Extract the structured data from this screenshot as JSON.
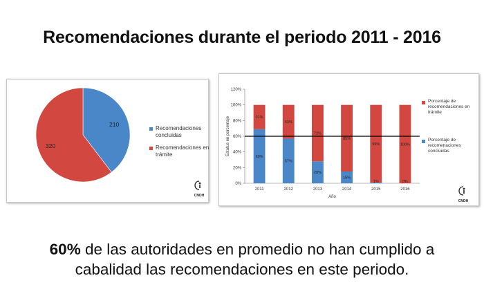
{
  "title": "Recomendaciones durante el periodo 2011 - 2016",
  "chart_data": [
    {
      "type": "pie",
      "labels": [
        "Recomendaciones concluidas",
        "Recomendaciones en trámite"
      ],
      "values": [
        210,
        320
      ],
      "colors": [
        "#4a87c9",
        "#d24840"
      ],
      "legend": [
        "Recomendaciones concluidas",
        "Recomendaciones en trámite"
      ]
    },
    {
      "type": "bar",
      "stacked": true,
      "categories": [
        "2011",
        "2012",
        "2013",
        "2014",
        "2015",
        "2016"
      ],
      "series": [
        {
          "name": "Porcentaje de recomenaciones concluidas",
          "values": [
            69,
            57,
            28,
            15,
            1,
            0
          ],
          "labels": [
            "69%",
            "57%",
            "28%",
            "15%",
            "1%",
            "0%"
          ],
          "color": "#4a87c9"
        },
        {
          "name": "Porcentaje de recomendaciones en trámite",
          "values": [
            31,
            43,
            72,
            85,
            99,
            100
          ],
          "labels": [
            "31%",
            "43%",
            "72%",
            "85%",
            "99%",
            "100%"
          ],
          "color": "#d24840"
        }
      ],
      "ylim": [
        0,
        120
      ],
      "yticks": [
        "0%",
        "20%",
        "40%",
        "60%",
        "80%",
        "100%",
        "120%"
      ],
      "reference_line": 60,
      "xlabel": "Año",
      "ylabel": "Estatus en porcentaje"
    }
  ],
  "logo": {
    "text": "CNDH"
  },
  "footer": {
    "highlight": "60%",
    "line1": " de las autoridades en promedio no han cumplido a",
    "line2": "cabalidad las recomendaciones en este periodo."
  }
}
